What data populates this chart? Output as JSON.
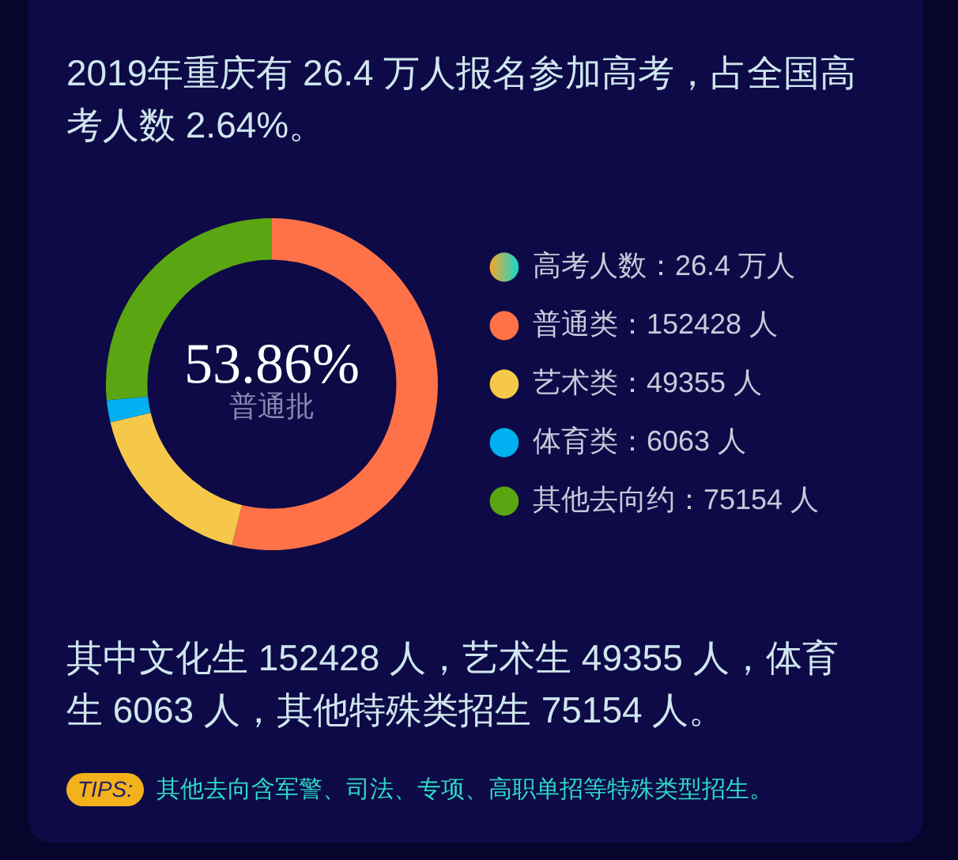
{
  "chart_data": {
    "type": "donut",
    "title": "2019年重庆有 26.4 万人报名参加高考，占全国高考人数 2.64%。",
    "legend_title": "高考人数：26.4 万人",
    "categories": [
      "普通类：152428 人",
      "艺术类：49355 人",
      "体育类：6063 人",
      "其他去向约：75154 人"
    ],
    "values": [
      152428,
      49355,
      6063,
      75154
    ],
    "colors": [
      "#ff7248",
      "#f6c84a",
      "#00b0f0",
      "#5aa512"
    ],
    "legend": "right",
    "annotations": [
      "53.86%",
      "普通批",
      "其中文化生 152428 人，艺术生 49355 人，体育生 6063 人，其他特殊类招生 75154 人。",
      "TIPS:",
      "其他去向含军警、司法、专项、高职单招等特殊类型招生。"
    ]
  }
}
